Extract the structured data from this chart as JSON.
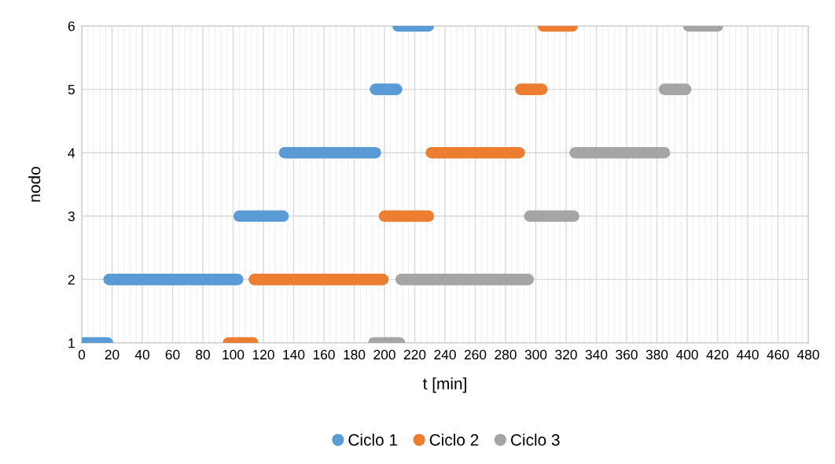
{
  "chart_data": {
    "type": "line",
    "xlabel": "t [min]",
    "ylabel": "nodo",
    "xlim": [
      0,
      480
    ],
    "xticks": [
      0,
      20,
      40,
      60,
      80,
      100,
      120,
      140,
      160,
      180,
      200,
      220,
      240,
      260,
      280,
      300,
      320,
      340,
      360,
      380,
      400,
      420,
      440,
      460,
      480
    ],
    "ylim": [
      1,
      6
    ],
    "yticks": [
      1,
      2,
      3,
      4,
      5,
      6
    ],
    "grid": true,
    "legend": "bottom",
    "series": [
      {
        "name": "Ciclo 1",
        "color": "#5b9bd5",
        "x": [
          1,
          17,
          null,
          18,
          103,
          null,
          104,
          133,
          null,
          134,
          194,
          null,
          194,
          208,
          null,
          209,
          229
        ],
        "values": [
          1,
          1,
          null,
          2,
          2,
          null,
          3,
          3,
          null,
          4,
          4,
          null,
          5,
          5,
          null,
          6,
          6
        ]
      },
      {
        "name": "Ciclo 2",
        "color": "#ed7d31",
        "x": [
          97,
          113,
          null,
          114,
          199,
          null,
          200,
          229,
          null,
          231,
          289,
          null,
          290,
          304,
          null,
          305,
          324
        ],
        "values": [
          1,
          1,
          null,
          2,
          2,
          null,
          3,
          3,
          null,
          4,
          4,
          null,
          5,
          5,
          null,
          6,
          6
        ]
      },
      {
        "name": "Ciclo 3",
        "color": "#a5a5a5",
        "x": [
          193,
          210,
          null,
          211,
          295,
          null,
          296,
          325,
          null,
          326,
          385,
          null,
          385,
          399,
          null,
          401,
          420
        ],
        "values": [
          1,
          1,
          null,
          2,
          2,
          null,
          3,
          3,
          null,
          4,
          4,
          null,
          5,
          5,
          null,
          6,
          6
        ]
      }
    ]
  }
}
